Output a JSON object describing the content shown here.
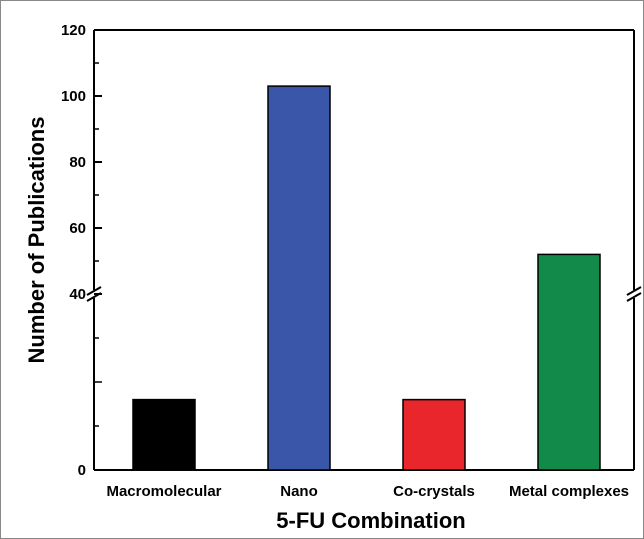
{
  "chart_data": {
    "type": "bar",
    "xlabel": "5-FU Combination",
    "ylabel": "Number of Publications",
    "categories": [
      "Macromolecular",
      "Nano",
      "Co-crystals",
      "Metal complexes"
    ],
    "values": [
      8,
      103,
      8,
      52
    ],
    "colors": [
      "#000000",
      "#3a56a8",
      "#e8262b",
      "#128a4a"
    ],
    "axis_break": {
      "lower_segment": [
        0,
        20
      ],
      "upper_segment": [
        40,
        120
      ]
    },
    "y_ticks_lower": [
      "0"
    ],
    "y_ticks_upper": [
      "40",
      "60",
      "80",
      "100",
      "120"
    ],
    "grid": false,
    "legend": "none"
  }
}
